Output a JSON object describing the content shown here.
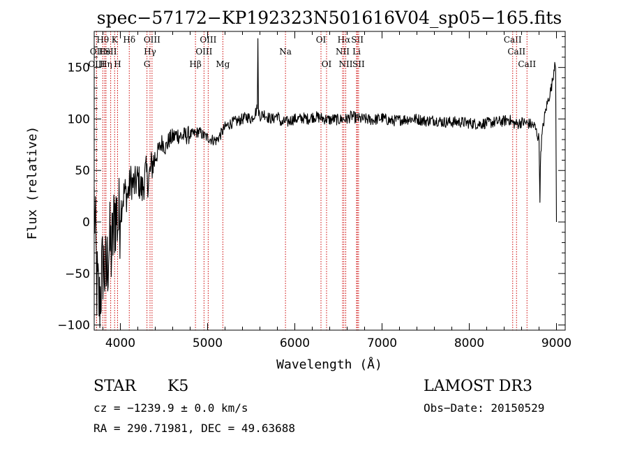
{
  "chart_data": {
    "type": "line",
    "title": "spec−57172−KP192323N501616V04_sp05−165.fits",
    "xlabel": "Wavelength (Å)",
    "ylabel": "Flux (relative)",
    "xlim": [
      3700,
      9100
    ],
    "ylim": [
      -105,
      185
    ],
    "xticks": [
      4000,
      5000,
      6000,
      7000,
      8000,
      9000
    ],
    "xtick_labels": [
      "4000",
      "5000",
      "6000",
      "7000",
      "8000",
      "9000"
    ],
    "yticks": [
      -100,
      -50,
      0,
      50,
      100,
      150
    ],
    "ytick_labels": [
      "−100",
      "−50",
      "0",
      "50",
      "100",
      "150"
    ],
    "series": [
      {
        "name": "flux",
        "color": "#000000",
        "x": [
          3700,
          3730,
          3760,
          3800,
          3840,
          3870,
          3900,
          3940,
          3980,
          4020,
          4050,
          4080,
          4120,
          4160,
          4200,
          4250,
          4290,
          4320,
          4360,
          4400,
          4440,
          4480,
          4520,
          4560,
          4600,
          4650,
          4700,
          4760,
          4820,
          4860,
          4900,
          4950,
          5000,
          5050,
          5100,
          5150,
          5200,
          5250,
          5300,
          5350,
          5400,
          5450,
          5500,
          5540,
          5570,
          5577,
          5584,
          5600,
          5650,
          5700,
          5750,
          5800,
          5850,
          5890,
          5920,
          5960,
          6000,
          6050,
          6100,
          6150,
          6200,
          6250,
          6300,
          6350,
          6400,
          6450,
          6500,
          6550,
          6600,
          6650,
          6700,
          6750,
          6800,
          6900,
          7000,
          7100,
          7200,
          7300,
          7400,
          7500,
          7600,
          7700,
          7800,
          7900,
          8000,
          8100,
          8200,
          8300,
          8400,
          8450,
          8500,
          8550,
          8600,
          8650,
          8700,
          8750,
          8780,
          8800,
          8810,
          8820,
          8830,
          8850,
          8880,
          8910,
          8940,
          8960,
          8980,
          8990,
          9000
        ],
        "values": [
          20,
          -60,
          -80,
          -40,
          -55,
          -20,
          -30,
          10,
          0,
          20,
          30,
          25,
          40,
          35,
          42,
          30,
          48,
          40,
          55,
          62,
          70,
          78,
          72,
          80,
          82,
          85,
          83,
          84,
          85,
          86,
          88,
          84,
          82,
          80,
          79,
          85,
          92,
          95,
          97,
          98,
          100,
          102,
          100,
          105,
          110,
          178,
          108,
          103,
          105,
          101,
          100,
          104,
          95,
          98,
          97,
          99,
          100,
          100,
          101,
          100,
          102,
          102,
          101,
          100,
          99,
          100,
          99,
          100,
          100,
          103,
          101,
          100,
          100,
          99,
          101,
          98,
          99,
          100,
          100,
          98,
          99,
          97,
          97,
          97,
          96,
          95,
          96,
          97,
          98,
          100,
          96,
          95,
          97,
          96,
          95,
          93,
          85,
          80,
          25,
          70,
          80,
          95,
          110,
          120,
          130,
          140,
          155,
          150,
          0
        ]
      }
    ],
    "lines": [
      {
        "name": "Hθ",
        "wl": 3798,
        "row": 1
      },
      {
        "name": "OII",
        "wl": 3727,
        "row": 2
      },
      {
        "name": "OIII",
        "wl": 3727,
        "row": 3
      },
      {
        "name": "He",
        "wl": 3820,
        "row": 2
      },
      {
        "name": "Hη",
        "wl": 3835,
        "row": 3
      },
      {
        "name": "K",
        "wl": 3934,
        "row": 1
      },
      {
        "name": "SII",
        "wl": 3889,
        "row": 2
      },
      {
        "name": "H",
        "wl": 3968,
        "row": 3
      },
      {
        "name": "Hδ",
        "wl": 4102,
        "row": 1
      },
      {
        "name": "OIII",
        "wl": 4363,
        "row": 1
      },
      {
        "name": "Hγ",
        "wl": 4340,
        "row": 2
      },
      {
        "name": "G",
        "wl": 4305,
        "row": 3
      },
      {
        "name": "Hβ",
        "wl": 4861,
        "row": 3
      },
      {
        "name": "OIII",
        "wl": 5007,
        "row": 1
      },
      {
        "name": "OIII",
        "wl": 4959,
        "row": 2
      },
      {
        "name": "Mg",
        "wl": 5175,
        "row": 3
      },
      {
        "name": "Na",
        "wl": 5893,
        "row": 2
      },
      {
        "name": "OI",
        "wl": 6300,
        "row": 1
      },
      {
        "name": "OI",
        "wl": 6364,
        "row": 3
      },
      {
        "name": "Hα",
        "wl": 6563,
        "row": 1
      },
      {
        "name": "NII",
        "wl": 6548,
        "row": 2
      },
      {
        "name": "NII",
        "wl": 6584,
        "row": 3
      },
      {
        "name": "SII",
        "wl": 6717,
        "row": 1
      },
      {
        "name": "Li",
        "wl": 6708,
        "row": 2
      },
      {
        "name": "SII",
        "wl": 6731,
        "row": 3
      },
      {
        "name": "CaII",
        "wl": 8498,
        "row": 1
      },
      {
        "name": "CaII",
        "wl": 8542,
        "row": 2
      },
      {
        "name": "CaII",
        "wl": 8662,
        "row": 3
      }
    ],
    "line_color": "#cc0000"
  },
  "info": {
    "object_class": "STAR",
    "subclass": "K5",
    "survey": "LAMOST DR3",
    "cz": "cz = −1239.9 ± 0.0 km/s",
    "obs_date": "Obs−Date: 20150529",
    "radec": "RA = 290.71981, DEC =  49.63688"
  }
}
